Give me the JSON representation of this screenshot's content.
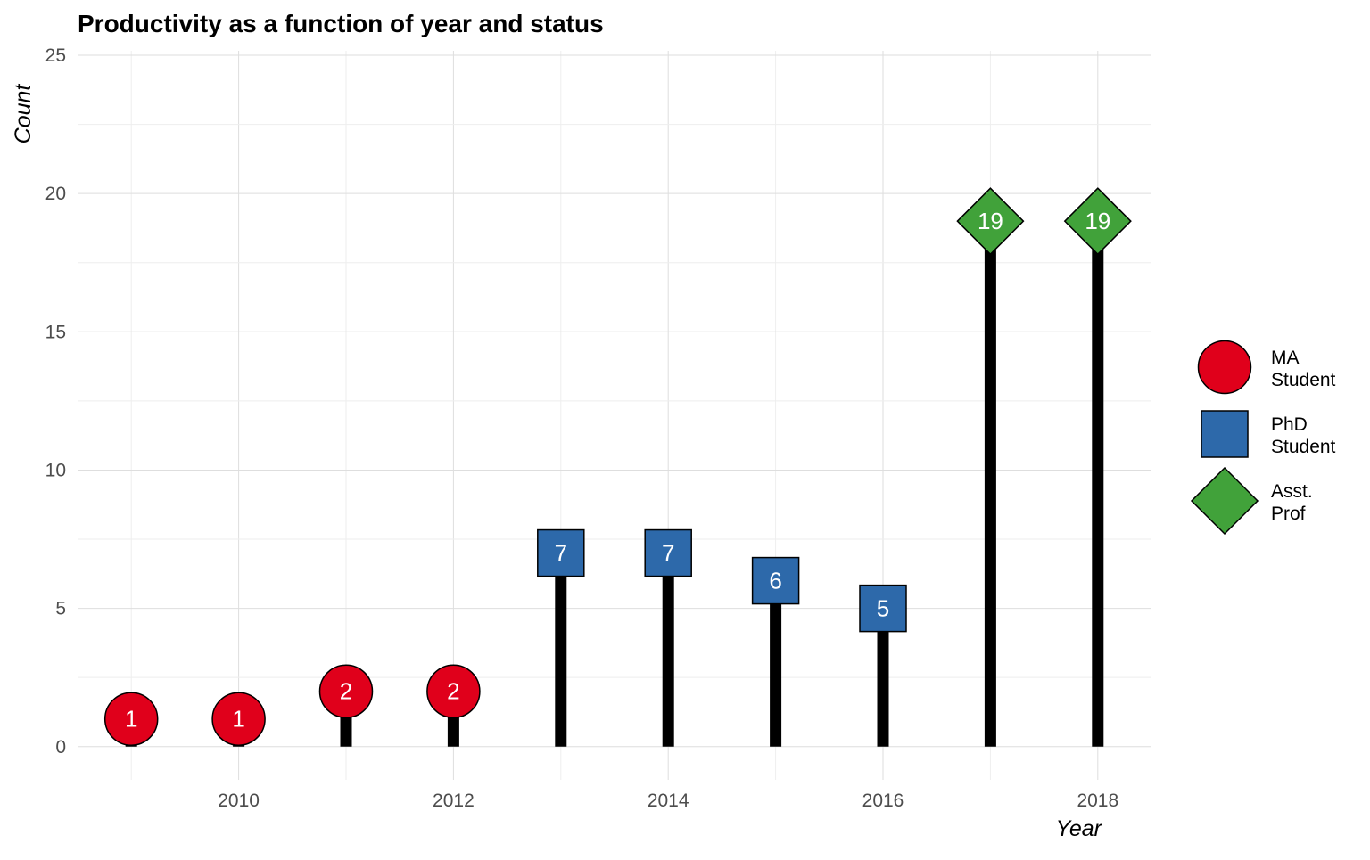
{
  "chart_data": {
    "type": "lollipop",
    "title": "Productivity as a function of year and status",
    "xlabel": "Year",
    "ylabel": "Count",
    "xlim": [
      2008.5,
      2018.5
    ],
    "ylim": [
      -1.2,
      25
    ],
    "x_ticks": [
      2010,
      2012,
      2014,
      2016,
      2018
    ],
    "y_ticks": [
      0,
      5,
      10,
      15,
      20,
      25
    ],
    "grid": true,
    "legend_position": "right",
    "legend": [
      {
        "key": "ma",
        "lines": [
          "MA",
          "Student"
        ],
        "shape": "circle",
        "color": "#E0001B"
      },
      {
        "key": "phd",
        "lines": [
          "PhD",
          "Student"
        ],
        "shape": "square",
        "color": "#2D69AA"
      },
      {
        "key": "asst",
        "lines": [
          "Asst.",
          "Prof"
        ],
        "shape": "diamond",
        "color": "#41A23A"
      }
    ],
    "points": [
      {
        "x": 2009,
        "y": 1,
        "status": "ma",
        "label": "1"
      },
      {
        "x": 2010,
        "y": 1,
        "status": "ma",
        "label": "1"
      },
      {
        "x": 2011,
        "y": 2,
        "status": "ma",
        "label": "2"
      },
      {
        "x": 2012,
        "y": 2,
        "status": "ma",
        "label": "2"
      },
      {
        "x": 2013,
        "y": 7,
        "status": "phd",
        "label": "7"
      },
      {
        "x": 2014,
        "y": 7,
        "status": "phd",
        "label": "7"
      },
      {
        "x": 2015,
        "y": 6,
        "status": "phd",
        "label": "6"
      },
      {
        "x": 2016,
        "y": 5,
        "status": "phd",
        "label": "5"
      },
      {
        "x": 2017,
        "y": 19,
        "status": "asst",
        "label": "19"
      },
      {
        "x": 2018,
        "y": 19,
        "status": "asst",
        "label": "19"
      }
    ]
  }
}
